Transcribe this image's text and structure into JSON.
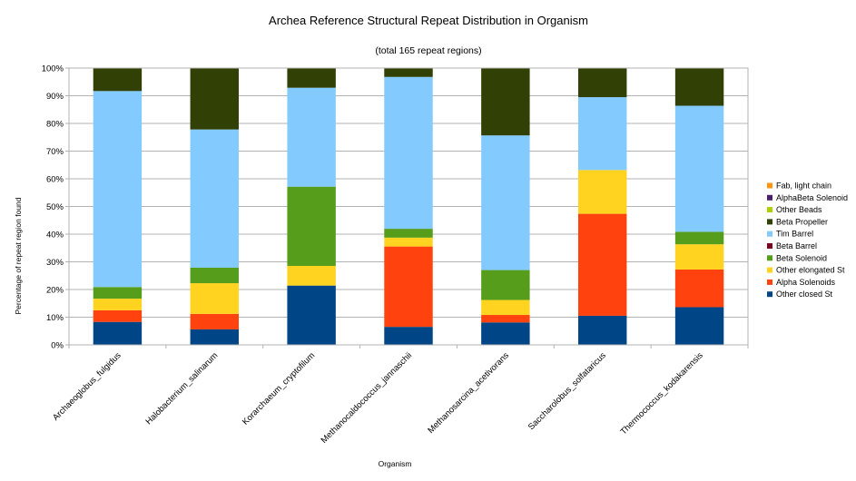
{
  "chart_data": {
    "type": "bar",
    "stacked": true,
    "percent": true,
    "title": "Archea Reference Structural Repeat Distribution in Organism",
    "subtitle": "(total 165 repeat regions)",
    "xlabel": "Organism",
    "ylabel": "Percentage of repeat region found",
    "ylim": [
      0,
      100
    ],
    "yticks": [
      "0%",
      "10%",
      "20%",
      "30%",
      "40%",
      "50%",
      "60%",
      "70%",
      "80%",
      "90%",
      "100%"
    ],
    "grid": true,
    "legend_position": "right",
    "categories": [
      "Archaeoglobus_fulgidus",
      "Halobacterium_salinarum",
      "Korarchaeum_cryptofilum",
      "Methanocaldococcus_jannaschii",
      "Methanosarcina_acetivorans",
      "Saccharolobus_solfataricus",
      "Thermococcus_kodakarensis"
    ],
    "series": [
      {
        "name": "Other closed St",
        "color": "#004586",
        "values": [
          8.3,
          5.6,
          21.4,
          6.5,
          8.1,
          10.5,
          13.6
        ]
      },
      {
        "name": "Alpha Solenoids",
        "color": "#ff420e",
        "values": [
          4.2,
          5.6,
          0,
          29.0,
          2.7,
          36.8,
          13.6
        ]
      },
      {
        "name": "Other elongated St",
        "color": "#ffd320",
        "values": [
          4.2,
          11.1,
          7.1,
          3.2,
          5.4,
          15.8,
          9.1
        ]
      },
      {
        "name": "Beta Solenoid",
        "color": "#579d1c",
        "values": [
          4.2,
          5.6,
          28.6,
          3.2,
          10.8,
          0,
          4.5
        ]
      },
      {
        "name": "Beta Barrel",
        "color": "#7e0021",
        "values": [
          0,
          0,
          0,
          0,
          0,
          0,
          0
        ]
      },
      {
        "name": "Tim Barrel",
        "color": "#83caff",
        "values": [
          70.8,
          50.0,
          35.7,
          54.8,
          48.6,
          26.3,
          45.5
        ]
      },
      {
        "name": "Beta Propeller",
        "color": "#314004",
        "values": [
          8.3,
          22.2,
          7.1,
          3.2,
          24.3,
          10.5,
          13.6
        ]
      },
      {
        "name": "Other Beads",
        "color": "#aecf00",
        "values": [
          0,
          0,
          0,
          0,
          0,
          0,
          0
        ]
      },
      {
        "name": "AlphaBeta Solenoid",
        "color": "#4b1f6f",
        "values": [
          0,
          0,
          0,
          0,
          0,
          0,
          0
        ]
      },
      {
        "name": "Fab, light chain",
        "color": "#ff950e",
        "values": [
          0,
          0,
          0,
          0,
          0,
          0,
          0
        ]
      }
    ]
  }
}
